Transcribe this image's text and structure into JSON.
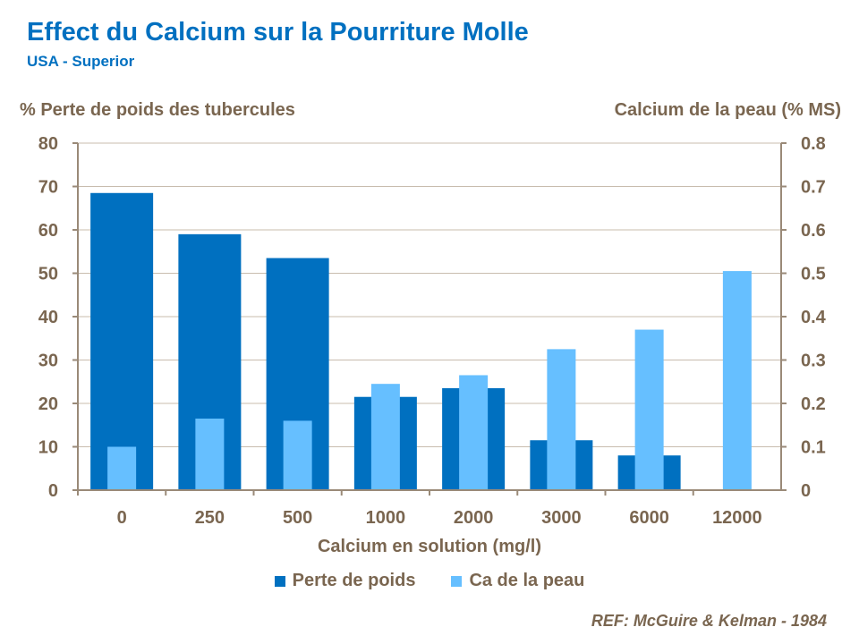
{
  "title": "Effect du Calcium sur la Pourriture Molle",
  "subtitle": "USA  - Superior",
  "reference": "REF: McGuire & Kelman - 1984",
  "chart_data": {
    "type": "bar",
    "title": "Effect du Calcium sur la Pourriture Molle",
    "xlabel": "Calcium en solution (mg/l)",
    "ylabel": "%  Perte de poids des tubercules",
    "y2label": "Calcium de la peau (%  MS)",
    "categories": [
      "0",
      "250",
      "500",
      "1000",
      "2000",
      "3000",
      "6000",
      "12000"
    ],
    "ylim": [
      0,
      80
    ],
    "yticks": [
      "0",
      "10",
      "20",
      "30",
      "40",
      "50",
      "60",
      "70",
      "80"
    ],
    "y2lim": [
      0,
      0.8
    ],
    "y2ticks": [
      "0",
      "0.1",
      "0.2",
      "0.3",
      "0.4",
      "0.5",
      "0.6",
      "0.7",
      "0.8"
    ],
    "grid": true,
    "legend": "bottom",
    "series": [
      {
        "name": "Perte de poids",
        "axis": "left",
        "color": "#0070C0",
        "values": [
          68.5,
          59,
          53.5,
          21.5,
          23.5,
          11.5,
          8,
          0
        ]
      },
      {
        "name": "Ca de la peau",
        "axis": "right",
        "color": "#66BFFF",
        "values": [
          0.1,
          0.165,
          0.16,
          0.245,
          0.265,
          0.325,
          0.37,
          0.505
        ]
      }
    ]
  }
}
